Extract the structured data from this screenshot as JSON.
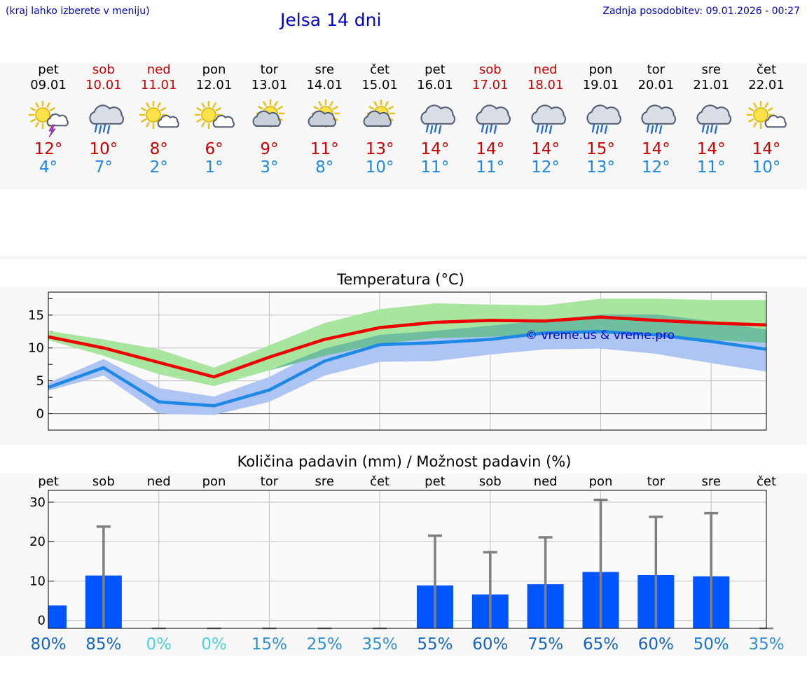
{
  "header": {
    "hint": "(kraj lahko izberete v meniju)",
    "title": "Jelsa 14 dni",
    "updated": "Zadnja posodobitev: 09.01.2026 - 00:27"
  },
  "colors": {
    "weekday": "#000000",
    "weekend": "#cc0000",
    "max_line": "#ee0000",
    "min_line": "#1e88e5",
    "max_band": "#a8e6a0",
    "min_band": "#aec4f2",
    "overlap_band": "#6fbf9e",
    "bar": "#0055ff",
    "error_bar": "#808080"
  },
  "days": [
    {
      "name": "pet",
      "date": "09.01",
      "weekend": false,
      "icon": "sun-cloud-thunder-icon",
      "max": "12°",
      "min": "4°"
    },
    {
      "name": "sob",
      "date": "10.01",
      "weekend": true,
      "icon": "cloud-rain-icon",
      "max": "10°",
      "min": "7°"
    },
    {
      "name": "ned",
      "date": "11.01",
      "weekend": true,
      "icon": "sun-small-cloud-icon",
      "max": "8°",
      "min": "2°"
    },
    {
      "name": "pon",
      "date": "12.01",
      "weekend": false,
      "icon": "sun-small-cloud-icon",
      "max": "6°",
      "min": "1°"
    },
    {
      "name": "tor",
      "date": "13.01",
      "weekend": false,
      "icon": "sun-cloud-icon",
      "max": "9°",
      "min": "3°"
    },
    {
      "name": "sre",
      "date": "14.01",
      "weekend": false,
      "icon": "sun-cloud-icon",
      "max": "11°",
      "min": "8°"
    },
    {
      "name": "čet",
      "date": "15.01",
      "weekend": false,
      "icon": "sun-cloud-icon",
      "max": "13°",
      "min": "10°"
    },
    {
      "name": "pet",
      "date": "16.01",
      "weekend": false,
      "icon": "cloud-rain-icon",
      "max": "14°",
      "min": "11°"
    },
    {
      "name": "sob",
      "date": "17.01",
      "weekend": true,
      "icon": "cloud-rain-icon",
      "max": "14°",
      "min": "11°"
    },
    {
      "name": "ned",
      "date": "18.01",
      "weekend": true,
      "icon": "cloud-rain-icon",
      "max": "14°",
      "min": "12°"
    },
    {
      "name": "pon",
      "date": "19.01",
      "weekend": false,
      "icon": "cloud-rain-icon",
      "max": "15°",
      "min": "13°"
    },
    {
      "name": "tor",
      "date": "20.01",
      "weekend": false,
      "icon": "cloud-rain-icon",
      "max": "14°",
      "min": "12°"
    },
    {
      "name": "sre",
      "date": "21.01",
      "weekend": false,
      "icon": "cloud-rain-icon",
      "max": "14°",
      "min": "11°"
    },
    {
      "name": "čet",
      "date": "22.01",
      "weekend": false,
      "icon": "sun-small-cloud-icon",
      "max": "14°",
      "min": "10°"
    }
  ],
  "chart_data": [
    {
      "type": "line",
      "title": "Temperatura (°C)",
      "x": [
        0,
        1,
        2,
        3,
        4,
        5,
        6,
        7,
        8,
        9,
        10,
        11,
        12,
        13
      ],
      "x_range": [
        0,
        13
      ],
      "ylim": [
        -2.5,
        18.5
      ],
      "yticks": [
        0,
        5,
        10,
        15
      ],
      "grid": true,
      "watermark": "© vreme.us & vreme.pro",
      "series": [
        {
          "name": "max",
          "values": [
            11.7,
            10.0,
            7.8,
            5.6,
            8.6,
            11.3,
            13.1,
            13.9,
            14.2,
            14.1,
            14.7,
            14.2,
            13.8,
            13.5
          ],
          "band_low": [
            11.2,
            8.8,
            6.0,
            4.2,
            6.6,
            8.8,
            10.6,
            11.5,
            11.7,
            12.0,
            12.2,
            11.8,
            11.2,
            10.8
          ],
          "band_high": [
            12.6,
            11.3,
            9.8,
            7.0,
            10.4,
            13.8,
            15.9,
            16.8,
            16.6,
            16.5,
            17.5,
            17.5,
            17.3,
            17.3
          ]
        },
        {
          "name": "min",
          "values": [
            4.0,
            7.0,
            1.8,
            1.2,
            3.6,
            8.0,
            10.5,
            10.8,
            11.3,
            12.3,
            12.5,
            12.0,
            11.0,
            9.8
          ],
          "band_low": [
            3.5,
            5.8,
            0.0,
            -0.2,
            1.8,
            5.8,
            7.9,
            8.0,
            9.0,
            9.8,
            9.9,
            9.1,
            7.7,
            6.4
          ],
          "band_high": [
            4.7,
            8.3,
            3.9,
            2.6,
            5.6,
            9.9,
            12.0,
            12.6,
            13.4,
            14.2,
            15.1,
            15.1,
            14.1,
            12.8
          ]
        }
      ]
    },
    {
      "type": "bar",
      "title": "Količina padavin (mm) / Možnost padavin (%)",
      "categories": [
        "pet",
        "sob",
        "ned",
        "pon",
        "tor",
        "sre",
        "čet",
        "pet",
        "sob",
        "ned",
        "pon",
        "tor",
        "sre",
        "čet"
      ],
      "values": [
        3.8,
        11.4,
        0,
        0,
        0,
        0,
        0,
        8.9,
        6.6,
        9.2,
        12.3,
        11.5,
        11.2,
        0
      ],
      "error_high": [
        null,
        23.8,
        0,
        0,
        0,
        0,
        0,
        21.5,
        17.3,
        21.1,
        30.6,
        26.3,
        27.2,
        0
      ],
      "ylim": [
        -2,
        33
      ],
      "yticks": [
        0,
        10,
        20,
        30
      ],
      "grid": true,
      "probability": [
        "80%",
        "85%",
        "0%",
        "0%",
        "15%",
        "25%",
        "35%",
        "55%",
        "60%",
        "75%",
        "65%",
        "60%",
        "50%",
        "35%"
      ],
      "probability_colors": [
        "#1565c0",
        "#1565c0",
        "#4dd0e1",
        "#4dd0e1",
        "#2f8fd0",
        "#2f8fd0",
        "#2f8fd0",
        "#1565c0",
        "#1565c0",
        "#1565c0",
        "#1565c0",
        "#1565c0",
        "#1976d2",
        "#2f8fd0"
      ]
    }
  ]
}
